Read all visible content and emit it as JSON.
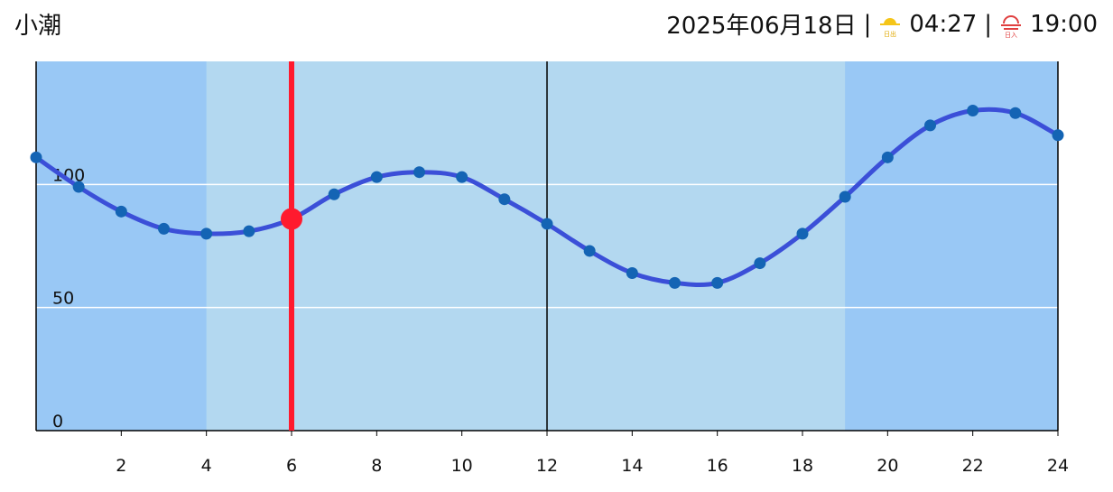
{
  "header": {
    "title": "小潮",
    "date": "2025年06月18日",
    "separator": "|",
    "sunrise_icon_label": "日出",
    "sunrise": "04:27",
    "sunset_icon_label": "日入",
    "sunset": "19:00"
  },
  "chart_data": {
    "type": "line",
    "x": [
      0,
      1,
      2,
      3,
      4,
      5,
      6,
      7,
      8,
      9,
      10,
      11,
      12,
      13,
      14,
      15,
      16,
      17,
      18,
      19,
      20,
      21,
      22,
      23,
      24
    ],
    "series": [
      {
        "color": "#3b4fd8",
        "marker_color": "#1464b4",
        "values": [
          111,
          99,
          89,
          82,
          80,
          81,
          86,
          96,
          103,
          105,
          103,
          94,
          84,
          73,
          64,
          60,
          60,
          68,
          80,
          95,
          111,
          124,
          130,
          129,
          120
        ]
      }
    ],
    "xlim": [
      0,
      24
    ],
    "xticks": [
      2,
      4,
      6,
      8,
      10,
      12,
      14,
      16,
      18,
      20,
      22,
      24
    ],
    "ylim": [
      0,
      150
    ],
    "yticks": [
      0,
      50,
      100
    ],
    "grid": true,
    "current_x": 6,
    "current_color": "#ff1a2e",
    "noon_x": 12,
    "night_bands": [
      {
        "from": 0,
        "to": 4
      },
      {
        "from": 19,
        "to": 24
      }
    ],
    "night_color": "#99c8f5",
    "day_color": "#b3d8f0"
  }
}
